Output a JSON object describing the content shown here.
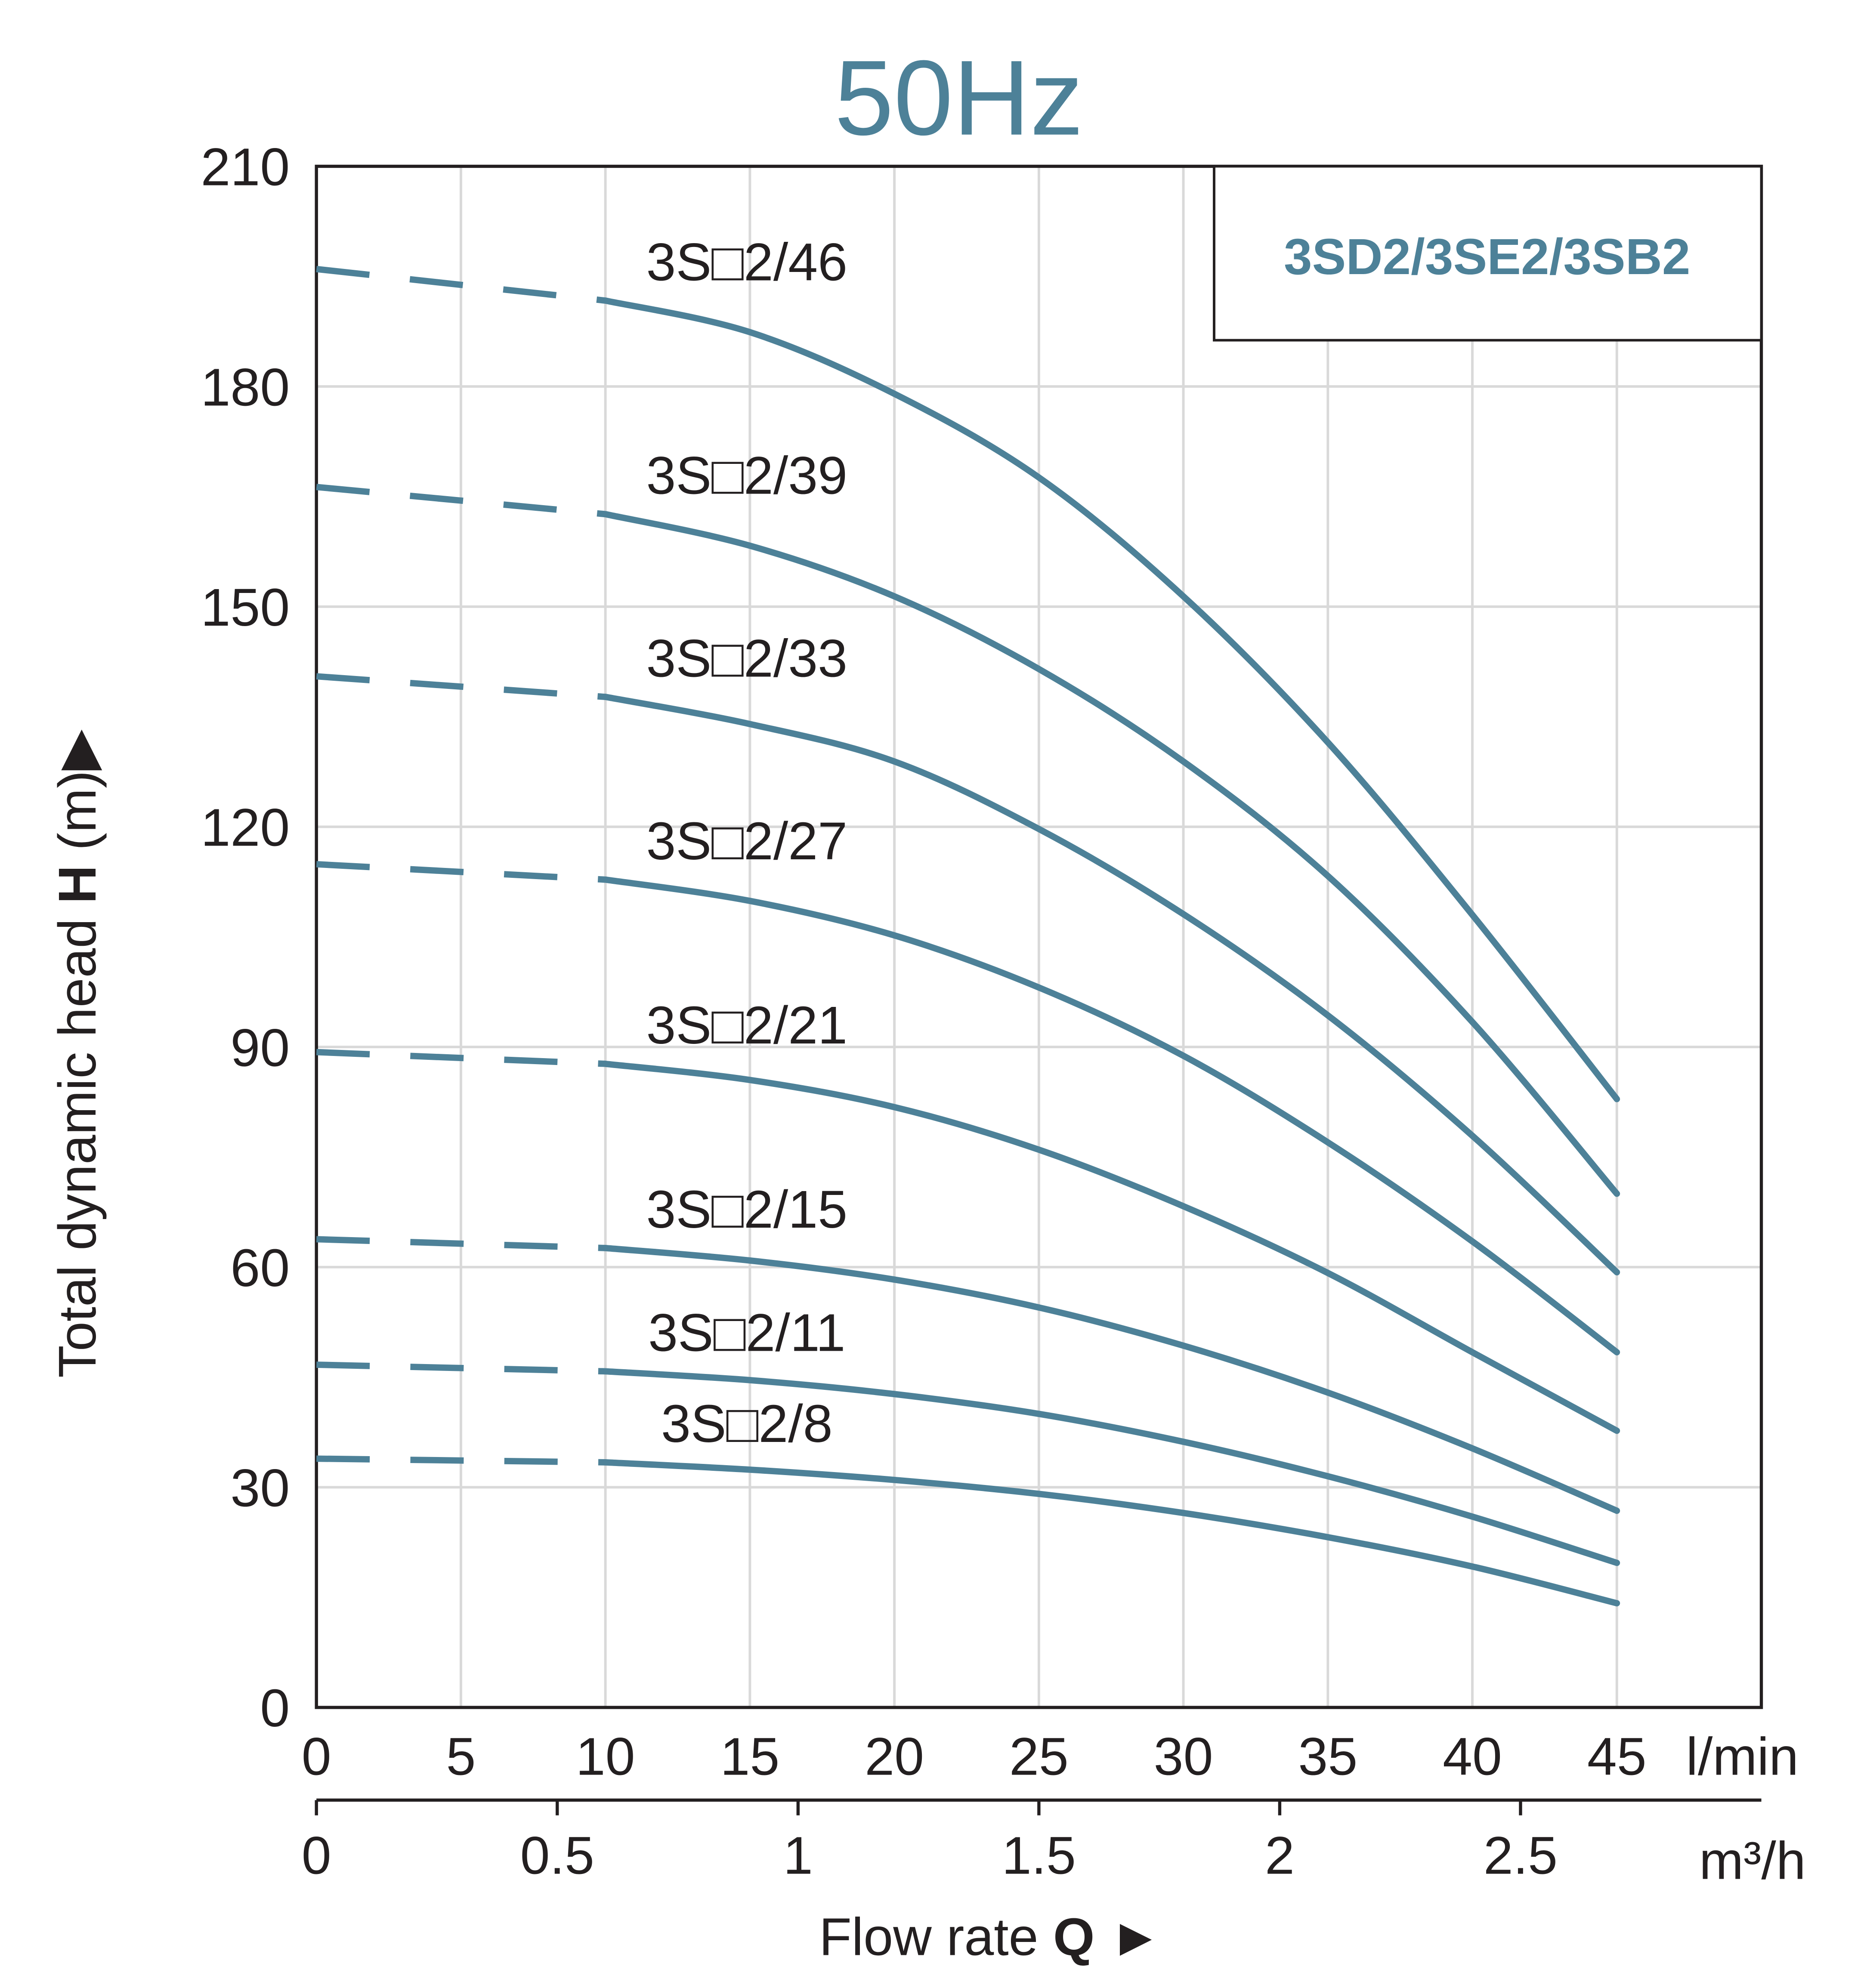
{
  "chart_data": {
    "type": "line",
    "title": "50Hz",
    "legend_box": "3SD2/3SE2/3SB2",
    "legend_placement": "top-right",
    "xlabel": "Flow rate",
    "xlabel_symbol": "Q",
    "xlabel_arrow": "►",
    "ylabel": "Total dynamic head",
    "ylabel_symbol": "H",
    "ylabel_unit": "(m)",
    "ylabel_arrow": "▶",
    "x_unit": "l/min",
    "x2_unit": "m³/h",
    "xlim": [
      0,
      50
    ],
    "ylim": [
      0,
      210
    ],
    "x_ticks": [
      0,
      5,
      10,
      15,
      20,
      25,
      30,
      35,
      40,
      45
    ],
    "x2_ticks": [
      "0",
      "0.5",
      "1",
      "1.5",
      "2",
      "2.5"
    ],
    "x2_tick_values": [
      0,
      0.5,
      1,
      1.5,
      2,
      2.5
    ],
    "y_ticks": [
      0,
      30,
      60,
      90,
      120,
      150,
      180,
      210
    ],
    "grid": true,
    "dashed_until_x": 10,
    "x": [
      0,
      10,
      15,
      20,
      25,
      30,
      35,
      40,
      45
    ],
    "series": [
      {
        "name": "3S□2/46",
        "values": [
          196,
          191.7,
          187.4,
          179,
          167.6,
          151.4,
          131.5,
          108,
          82.9
        ]
      },
      {
        "name": "3S□2/39",
        "values": [
          166.3,
          162.6,
          158.3,
          151.4,
          141.5,
          128.9,
          113.3,
          93.4,
          70
        ]
      },
      {
        "name": "3S□2/33",
        "values": [
          140.5,
          137.7,
          134,
          128.9,
          119.7,
          108.1,
          94.3,
          77.9,
          59.3
        ]
      },
      {
        "name": "3S□2/27",
        "values": [
          114.9,
          112.8,
          109.9,
          105.2,
          98.1,
          88.8,
          77,
          63.5,
          48.4
        ]
      },
      {
        "name": "3S□2/21",
        "values": [
          89.3,
          87.7,
          85.5,
          81.8,
          76,
          68.3,
          59.2,
          48.4,
          37.7
        ]
      },
      {
        "name": "3S□2/15",
        "values": [
          63.8,
          62.6,
          60.9,
          58.3,
          54.5,
          49.3,
          42.9,
          35.3,
          26.8
        ]
      },
      {
        "name": "3S□2/11",
        "values": [
          46.7,
          45.8,
          44.6,
          42.7,
          40,
          36.2,
          31.5,
          26,
          19.7
        ]
      },
      {
        "name": "3S□2/8",
        "values": [
          33.9,
          33.4,
          32.4,
          31,
          29.1,
          26.5,
          23.2,
          19.2,
          14.2
        ]
      }
    ],
    "colors": {
      "curve": "#4d8198",
      "title": "#4d8198",
      "grid": "#d9d9d9",
      "axis": "#231f20"
    }
  }
}
